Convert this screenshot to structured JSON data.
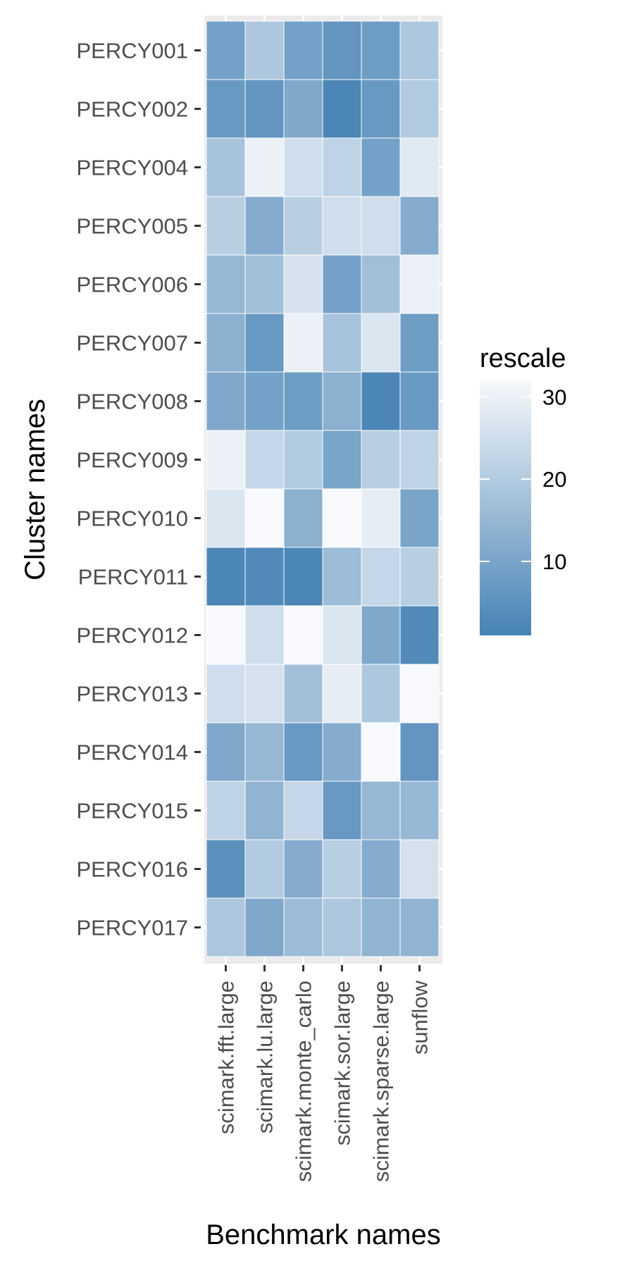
{
  "chart_data": {
    "type": "heatmap",
    "xlabel": "Benchmark names",
    "ylabel": "Cluster names",
    "x_categories": [
      "scimark.fft.large",
      "scimark.lu.large",
      "scimark.monte_carlo",
      "scimark.sor.large",
      "scimark.sparse.large",
      "sunflow"
    ],
    "y_categories": [
      "PERCY001",
      "PERCY002",
      "PERCY004",
      "PERCY005",
      "PERCY006",
      "PERCY007",
      "PERCY008",
      "PERCY009",
      "PERCY010",
      "PERCY011",
      "PERCY012",
      "PERCY013",
      "PERCY014",
      "PERCY015",
      "PERCY016",
      "PERCY017"
    ],
    "values": [
      [
        9,
        19,
        9,
        6,
        8,
        19
      ],
      [
        7,
        6,
        11,
        2,
        7,
        20
      ],
      [
        18,
        30,
        25,
        22,
        9,
        28
      ],
      [
        21,
        12,
        21,
        25,
        25,
        12
      ],
      [
        15,
        17,
        26,
        9,
        17,
        30
      ],
      [
        13,
        7,
        30,
        18,
        27,
        8
      ],
      [
        11,
        9,
        8,
        13,
        2,
        7
      ],
      [
        30,
        23,
        20,
        10,
        21,
        22
      ],
      [
        27,
        32,
        13,
        32,
        29,
        10
      ],
      [
        2,
        3,
        2,
        16,
        23,
        21
      ],
      [
        32,
        25,
        32,
        27,
        11,
        3
      ],
      [
        25,
        26,
        17,
        29,
        19,
        32
      ],
      [
        11,
        15,
        7,
        12,
        32,
        6
      ],
      [
        22,
        14,
        23,
        7,
        15,
        15
      ],
      [
        5,
        20,
        12,
        21,
        12,
        26
      ],
      [
        19,
        11,
        16,
        19,
        14,
        14
      ]
    ],
    "legend": {
      "title": "rescale",
      "ticks": [
        10,
        20,
        30
      ],
      "range": [
        1,
        32
      ],
      "low_color": "#4682B4",
      "high_color": "#F7F9FC",
      "placement": "right"
    },
    "panel_background": "#EBEBEB",
    "grid": true
  }
}
